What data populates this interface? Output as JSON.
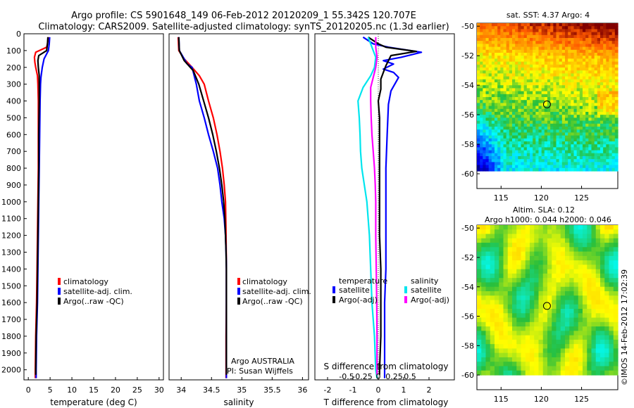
{
  "header": {
    "title_line1": "Argo profile: CS 5901648_149 06-Feb-2012 20120209_1 55.342S 120.707E",
    "title_line2": "Climatology: CARS2009. Satellite-adjusted climatology: synTS_20120205.nc (1.3d earlier)"
  },
  "colors": {
    "climatology": "#ff0000",
    "satellite": "#0000ff",
    "argo": "#000000",
    "cyan": "#00e5ee",
    "magenta": "#ff00ff"
  },
  "chart_data": [
    {
      "type": "line",
      "xlabel": "temperature (deg C)",
      "x_ticks": [
        "0",
        "5",
        "10",
        "15",
        "20",
        "25",
        "30"
      ],
      "y_ticks": [
        "0",
        "100",
        "200",
        "300",
        "400",
        "500",
        "600",
        "700",
        "800",
        "900",
        "1000",
        "1100",
        "1200",
        "1300",
        "1400",
        "1500",
        "1600",
        "1700",
        "1800",
        "1900",
        "2000"
      ],
      "xlim": [
        -1,
        31
      ],
      "ylim": [
        2060,
        0
      ],
      "legend": [
        "climatology",
        "satellite-adj. clim.",
        "Argo(..raw -QC)"
      ],
      "series": [
        {
          "color": "#ff0000",
          "points": [
            [
              4.6,
              20
            ],
            [
              4.4,
              60
            ],
            [
              4.2,
              80
            ],
            [
              1.7,
              110
            ],
            [
              1.4,
              140
            ],
            [
              1.5,
              170
            ],
            [
              1.7,
              200
            ],
            [
              2.1,
              250
            ],
            [
              2.2,
              300
            ],
            [
              2.3,
              400
            ],
            [
              2.3,
              600
            ],
            [
              2.3,
              800
            ],
            [
              2.2,
              1000
            ],
            [
              2.1,
              1200
            ],
            [
              2.0,
              1400
            ],
            [
              1.9,
              1600
            ],
            [
              1.7,
              1800
            ],
            [
              1.6,
              2000
            ],
            [
              1.6,
              2050
            ]
          ]
        },
        {
          "color": "#0000ff",
          "points": [
            [
              4.9,
              20
            ],
            [
              4.8,
              60
            ],
            [
              4.6,
              100
            ],
            [
              3.6,
              150
            ],
            [
              3.2,
              200
            ],
            [
              2.9,
              260
            ],
            [
              2.8,
              300
            ],
            [
              2.7,
              400
            ],
            [
              2.6,
              600
            ],
            [
              2.5,
              800
            ],
            [
              2.4,
              1000
            ],
            [
              2.3,
              1200
            ],
            [
              2.2,
              1400
            ],
            [
              2.1,
              1600
            ],
            [
              1.9,
              1800
            ],
            [
              1.8,
              2000
            ],
            [
              1.8,
              2050
            ]
          ]
        },
        {
          "color": "#000000",
          "points": [
            [
              4.5,
              20
            ],
            [
              4.4,
              60
            ],
            [
              4.2,
              100
            ],
            [
              2.4,
              130
            ],
            [
              2.2,
              160
            ],
            [
              2.3,
              200
            ],
            [
              2.5,
              250
            ],
            [
              2.5,
              300
            ],
            [
              2.5,
              400
            ],
            [
              2.4,
              600
            ],
            [
              2.4,
              800
            ],
            [
              2.3,
              1000
            ],
            [
              2.2,
              1200
            ],
            [
              2.1,
              1400
            ],
            [
              2.0,
              1600
            ],
            [
              1.8,
              1800
            ],
            [
              1.7,
              2000
            ],
            [
              1.7,
              2030
            ]
          ]
        }
      ]
    },
    {
      "type": "line",
      "xlabel": "salinity",
      "x_ticks": [
        "34",
        "34.5",
        "35",
        "35.5",
        "36"
      ],
      "xlim": [
        33.8,
        36.1
      ],
      "ylim": [
        2060,
        0
      ],
      "legend": [
        "climatology",
        "satellite-adj. clim.",
        "Argo(..raw -QC)"
      ],
      "annotation": [
        "Argo AUSTRALIA",
        "PI: Susan Wijffels"
      ],
      "series": [
        {
          "color": "#ff0000",
          "points": [
            [
              33.95,
              20
            ],
            [
              33.96,
              100
            ],
            [
              34.05,
              150
            ],
            [
              34.18,
              200
            ],
            [
              34.3,
              250
            ],
            [
              34.38,
              300
            ],
            [
              34.45,
              400
            ],
            [
              34.53,
              500
            ],
            [
              34.59,
              600
            ],
            [
              34.64,
              700
            ],
            [
              34.68,
              800
            ],
            [
              34.71,
              900
            ],
            [
              34.73,
              1000
            ],
            [
              34.74,
              1200
            ],
            [
              34.745,
              1400
            ],
            [
              34.745,
              1600
            ],
            [
              34.74,
              1800
            ],
            [
              34.74,
              2050
            ]
          ]
        },
        {
          "color": "#0000ff",
          "points": [
            [
              33.96,
              20
            ],
            [
              33.97,
              100
            ],
            [
              34.1,
              180
            ],
            [
              34.18,
              200
            ],
            [
              34.25,
              300
            ],
            [
              34.3,
              400
            ],
            [
              34.38,
              500
            ],
            [
              34.45,
              600
            ],
            [
              34.53,
              700
            ],
            [
              34.6,
              800
            ],
            [
              34.64,
              900
            ],
            [
              34.67,
              1000
            ],
            [
              34.71,
              1100
            ],
            [
              34.73,
              1200
            ],
            [
              34.74,
              1300
            ],
            [
              34.745,
              1400
            ],
            [
              34.745,
              1600
            ],
            [
              34.745,
              1800
            ],
            [
              34.745,
              2050
            ]
          ]
        },
        {
          "color": "#000000",
          "points": [
            [
              33.96,
              20
            ],
            [
              33.97,
              100
            ],
            [
              34.05,
              160
            ],
            [
              34.2,
              220
            ],
            [
              34.29,
              300
            ],
            [
              34.37,
              400
            ],
            [
              34.45,
              500
            ],
            [
              34.52,
              600
            ],
            [
              34.58,
              700
            ],
            [
              34.63,
              800
            ],
            [
              34.67,
              900
            ],
            [
              34.7,
              1000
            ],
            [
              34.72,
              1100
            ],
            [
              34.73,
              1200
            ],
            [
              34.74,
              1300
            ],
            [
              34.745,
              1400
            ],
            [
              34.745,
              1600
            ],
            [
              34.745,
              1800
            ],
            [
              34.745,
              2000
            ],
            [
              34.745,
              2030
            ]
          ]
        }
      ]
    },
    {
      "type": "line",
      "xlabel": "T difference from climatology",
      "top_label": "S difference from climatology",
      "x_ticks": [
        "-2",
        "-1",
        "0",
        "1",
        "2"
      ],
      "s_ticks": [
        "-0.5",
        "-0.25",
        "0",
        "0.25",
        "0.5"
      ],
      "xlim": [
        -2.5,
        3.0
      ],
      "ylim": [
        2060,
        0
      ],
      "legend_title_temperature": "temperature",
      "legend_title_salinity": "salinity",
      "legend": [
        "satellite",
        "Argo(-adj)",
        "satellite",
        "Argo(-adj)"
      ],
      "series": [
        {
          "color": "#0000ff",
          "points": [
            [
              -0.6,
              20
            ],
            [
              -0.2,
              60
            ],
            [
              0.4,
              80
            ],
            [
              1.7,
              110
            ],
            [
              0.9,
              140
            ],
            [
              0.2,
              160
            ],
            [
              0.6,
              180
            ],
            [
              0.2,
              210
            ],
            [
              0.6,
              230
            ],
            [
              0.8,
              260
            ],
            [
              0.5,
              340
            ],
            [
              0.4,
              420
            ],
            [
              0.35,
              600
            ],
            [
              0.3,
              800
            ],
            [
              0.3,
              1000
            ],
            [
              0.3,
              1200
            ],
            [
              0.3,
              1400
            ],
            [
              0.25,
              1600
            ],
            [
              0.25,
              1800
            ],
            [
              0.25,
              2000
            ],
            [
              0.25,
              2050
            ]
          ]
        },
        {
          "color": "#000000",
          "points": [
            [
              -0.4,
              20
            ],
            [
              0.0,
              60
            ],
            [
              0.3,
              80
            ],
            [
              1.5,
              105
            ],
            [
              0.5,
              130
            ],
            [
              0.4,
              160
            ],
            [
              0.3,
              190
            ],
            [
              0.2,
              230
            ],
            [
              0.1,
              270
            ],
            [
              0.1,
              330
            ],
            [
              0.0,
              400
            ],
            [
              0.05,
              500
            ],
            [
              0.05,
              600
            ],
            [
              0.05,
              800
            ],
            [
              0.05,
              1000
            ],
            [
              0.05,
              1200
            ],
            [
              0.1,
              1400
            ],
            [
              0.1,
              1600
            ],
            [
              0.1,
              1800
            ],
            [
              0.05,
              2000
            ],
            [
              0.05,
              2030
            ]
          ]
        },
        {
          "color": "#00e5ee",
          "points": [
            [
              -0.4,
              20
            ],
            [
              -0.3,
              60
            ],
            [
              -0.2,
              100
            ],
            [
              -0.1,
              140
            ],
            [
              -0.15,
              200
            ],
            [
              -0.3,
              250
            ],
            [
              -0.6,
              320
            ],
            [
              -0.8,
              400
            ],
            [
              -0.75,
              500
            ],
            [
              -0.72,
              600
            ],
            [
              -0.7,
              700
            ],
            [
              -0.65,
              800
            ],
            [
              -0.55,
              900
            ],
            [
              -0.45,
              1000
            ],
            [
              -0.35,
              1200
            ],
            [
              -0.3,
              1400
            ],
            [
              -0.25,
              1600
            ],
            [
              -0.15,
              1800
            ],
            [
              -0.1,
              2000
            ],
            [
              -0.05,
              2050
            ]
          ]
        },
        {
          "color": "#ff00ff",
          "points": [
            [
              -0.1,
              20
            ],
            [
              -0.1,
              80
            ],
            [
              -0.05,
              140
            ],
            [
              -0.1,
              200
            ],
            [
              -0.2,
              260
            ],
            [
              -0.3,
              320
            ],
            [
              -0.3,
              400
            ],
            [
              -0.28,
              500
            ],
            [
              -0.25,
              600
            ],
            [
              -0.2,
              700
            ],
            [
              -0.15,
              800
            ],
            [
              -0.12,
              900
            ],
            [
              -0.1,
              1000
            ],
            [
              -0.1,
              1200
            ],
            [
              -0.08,
              1400
            ],
            [
              -0.06,
              1600
            ],
            [
              -0.05,
              1800
            ],
            [
              -0.05,
              2000
            ],
            [
              -0.05,
              2030
            ]
          ]
        }
      ]
    },
    {
      "type": "heatmap",
      "title": "sat. SST: 4.37 Argo: 4",
      "x_ticks": [
        "115",
        "120",
        "125"
      ],
      "y_ticks": [
        "-50",
        "-52",
        "-54",
        "-56",
        "-58",
        "-60"
      ],
      "xlim": [
        112,
        129.5
      ],
      "ylim": [
        -61,
        -49.8
      ],
      "marker": {
        "lon": 120.7,
        "lat": -55.3
      }
    },
    {
      "type": "heatmap",
      "title_line1": "Altim. SLA: 0.12",
      "title_line2": "Argo h1000: 0.044 h2000: 0.046",
      "x_ticks": [
        "115",
        "120",
        "125"
      ],
      "y_ticks": [
        "-50",
        "-52",
        "-54",
        "-56",
        "-58",
        "-60"
      ],
      "xlim": [
        112,
        129.5
      ],
      "ylim": [
        -61,
        -49.8
      ],
      "marker": {
        "lon": 120.7,
        "lat": -55.3
      }
    }
  ],
  "footer": {
    "credit": "©IMOS 14-Feb-2012 17:02:39"
  }
}
